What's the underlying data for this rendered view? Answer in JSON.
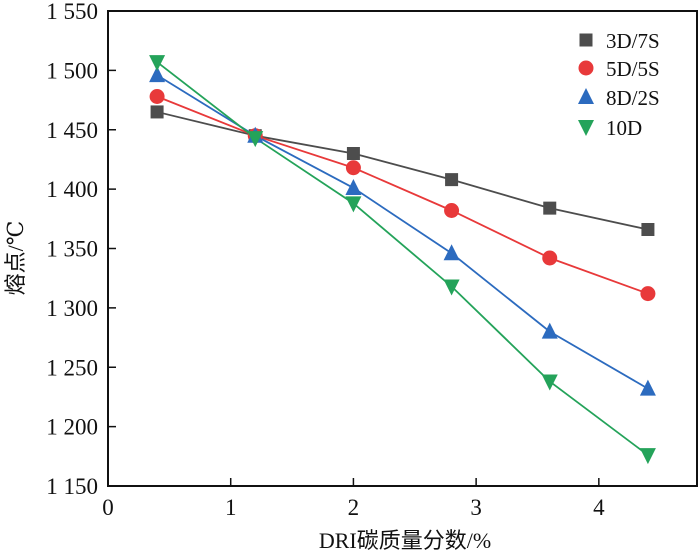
{
  "chart_data": {
    "type": "line",
    "title": "",
    "xlabel": "DRI碳质量分数/%",
    "ylabel": "熔点/℃",
    "xlim": [
      0,
      4.8
    ],
    "ylim": [
      1150,
      1550
    ],
    "xticks": [
      0,
      1,
      2,
      3,
      4
    ],
    "xtick_labels": [
      "0",
      "1",
      "2",
      "3",
      "4"
    ],
    "yticks": [
      1150,
      1200,
      1250,
      1300,
      1350,
      1400,
      1450,
      1500,
      1550
    ],
    "ytick_labels": [
      "1 150",
      "1 200",
      "1 250",
      "1 300",
      "1 350",
      "1 400",
      "1 450",
      "1 500",
      "1 550"
    ],
    "grid": false,
    "legend_position": "top-right",
    "x": [
      0.4,
      1.2,
      2.0,
      2.8,
      3.6,
      4.4
    ],
    "series": [
      {
        "name": "3D/7S",
        "marker": "square",
        "color": "#4d4d4d",
        "values": [
          1465,
          1445,
          1430,
          1408,
          1384,
          1366
        ]
      },
      {
        "name": "5D/5S",
        "marker": "circle",
        "color": "#e8393a",
        "values": [
          1478,
          1445,
          1418,
          1382,
          1342,
          1312
        ]
      },
      {
        "name": "8D/2S",
        "marker": "triangle-up",
        "color": "#2c6bbf",
        "values": [
          1496,
          1445,
          1401,
          1346,
          1280,
          1232
        ]
      },
      {
        "name": "10D",
        "marker": "triangle-down",
        "color": "#24a35a",
        "values": [
          1507,
          1443,
          1388,
          1318,
          1238,
          1176
        ]
      }
    ]
  }
}
